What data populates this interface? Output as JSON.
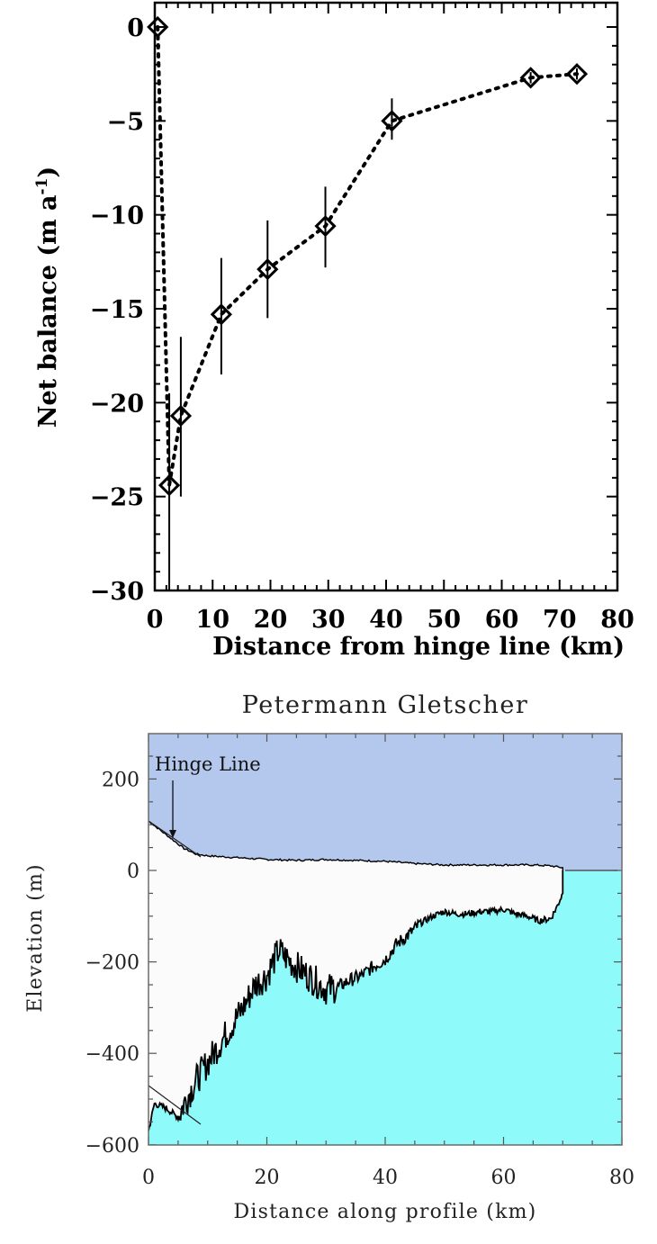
{
  "chart_data": [
    {
      "type": "scatter",
      "title": "",
      "xlabel": "Distance from hinge line (km)",
      "ylabel": "Net balance (m a⁻¹)",
      "xlim": [
        0,
        80
      ],
      "ylim": [
        -30,
        0
      ],
      "xticks": [
        0,
        10,
        20,
        30,
        40,
        50,
        60,
        70,
        80
      ],
      "yticks": [
        0,
        -5,
        -10,
        -15,
        -20,
        -25,
        -30
      ],
      "grid": false,
      "legend": null,
      "marker": "diamond",
      "line_style": "dotted",
      "series": [
        {
          "name": "Net balance",
          "x": [
            0.5,
            2.5,
            4.5,
            11.5,
            19.5,
            29.5,
            41,
            65,
            73
          ],
          "y": [
            0,
            -24.4,
            -20.7,
            -15.3,
            -12.9,
            -10.6,
            -5.0,
            -2.7,
            -2.5
          ],
          "error_low": [
            0,
            -30,
            -25,
            -18.5,
            -15.5,
            -12.8,
            -6.0,
            -3.0,
            -2.8
          ],
          "error_high": [
            0,
            -19.5,
            -16.5,
            -12.3,
            -10.3,
            -8.5,
            -3.8,
            -2.4,
            -2.2
          ]
        }
      ]
    },
    {
      "type": "area",
      "title": "Petermann Gletscher",
      "xlabel": "Distance along profile (km)",
      "ylabel": "Elevation (m)",
      "xlim": [
        0,
        80
      ],
      "ylim": [
        -620,
        300
      ],
      "xticks": [
        0,
        20,
        40,
        60,
        80
      ],
      "yticks": [
        200,
        0,
        -200,
        -400,
        -600
      ],
      "grid": false,
      "annotations": [
        {
          "text": "Hinge Line",
          "x": 4,
          "y": 60,
          "arrow": true
        }
      ],
      "colors": {
        "air": "#b4c8ee",
        "ice": "#fbfbfb",
        "ocean": "#8ffafa",
        "line": "#000000"
      },
      "series": [
        {
          "name": "Ice surface",
          "x": [
            0,
            2,
            4,
            6,
            8,
            10,
            15,
            20,
            25,
            30,
            35,
            40,
            45,
            50,
            55,
            60,
            65,
            68,
            70,
            71,
            80
          ],
          "y": [
            108,
            88,
            68,
            48,
            36,
            32,
            28,
            24,
            22,
            24,
            22,
            20,
            15,
            12,
            12,
            12,
            12,
            10,
            6,
            0,
            0
          ]
        },
        {
          "name": "Ice base / bed",
          "x": [
            0,
            1,
            3,
            5,
            6,
            8,
            10,
            12,
            14,
            16,
            18,
            20,
            22,
            24,
            26,
            28,
            30,
            32,
            34,
            36,
            38,
            40,
            42,
            44,
            46,
            48,
            50,
            52,
            54,
            56,
            58,
            60,
            62,
            64,
            66,
            68,
            69,
            70
          ],
          "y": [
            -570,
            -510,
            -520,
            -540,
            -510,
            -460,
            -420,
            -380,
            -340,
            -300,
            -250,
            -230,
            -175,
            -200,
            -220,
            -240,
            -260,
            -255,
            -240,
            -230,
            -210,
            -195,
            -160,
            -140,
            -115,
            -100,
            -90,
            -95,
            -95,
            -90,
            -90,
            -85,
            -95,
            -100,
            -110,
            -105,
            -80,
            -50
          ]
        }
      ]
    }
  ],
  "top_chart": {
    "ylabel": "Net balance (m a",
    "ylabel_sup": "-1",
    "ylabel_close": ")",
    "xlabel": "Distance from hinge line (km)",
    "ytick_labels": [
      "0",
      "-5",
      "-10",
      "-15",
      "-20",
      "-25",
      "-30"
    ],
    "xtick_labels": [
      "0",
      "10",
      "20",
      "30",
      "40",
      "50",
      "60",
      "70",
      "80"
    ]
  },
  "bottom_chart": {
    "title": "Petermann Gletscher",
    "ylabel": "Elevation (m)",
    "xlabel": "Distance along profile (km)",
    "annotation": "Hinge Line",
    "ytick_labels": [
      "200",
      "0",
      "-200",
      "-400",
      "-600"
    ],
    "xtick_labels": [
      "0",
      "20",
      "40",
      "60",
      "80"
    ]
  }
}
